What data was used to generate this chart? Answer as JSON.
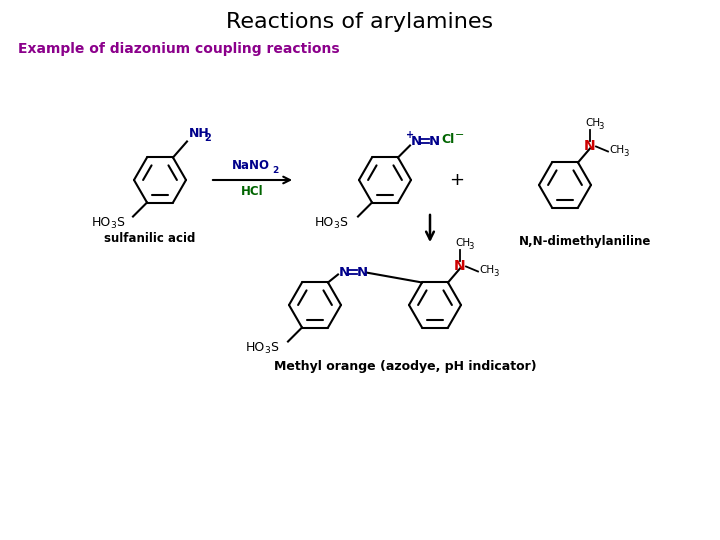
{
  "title": "Reactions of arylamines",
  "subtitle": "Example of diazonium coupling reactions",
  "subtitle_color": "#8B008B",
  "title_fontsize": 16,
  "subtitle_fontsize": 10,
  "bg_color": "#ffffff",
  "black": "#000000",
  "blue": "#00008B",
  "green": "#006400",
  "red": "#CC0000",
  "label_sulfanilic": "sulfanilic acid",
  "label_nn_dimethyl": "N,N-dimethylaniline",
  "label_product": "Methyl orange (azodye, pH indicator)"
}
